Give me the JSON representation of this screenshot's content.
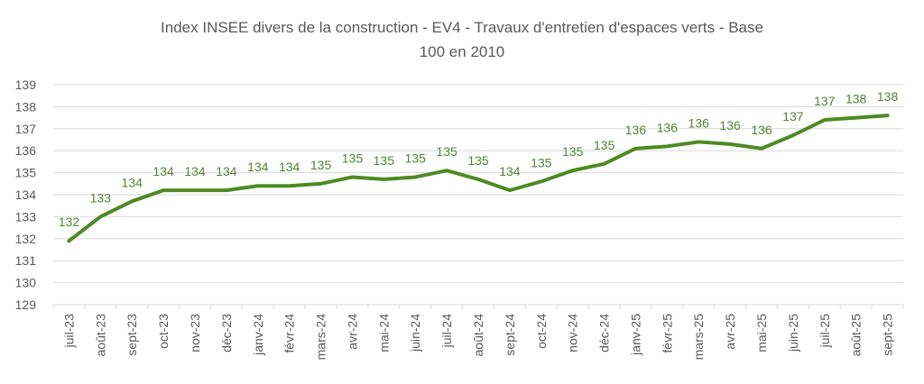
{
  "chart_data": {
    "type": "line",
    "title_lines": [
      "Index INSEE divers de la construction - EV4 - Travaux d'entretien d'espaces verts - Base",
      "100 en 2010"
    ],
    "xlabel": "",
    "ylabel": "",
    "ylim": [
      129,
      139
    ],
    "yticks": [
      "129",
      "130",
      "131",
      "132",
      "133",
      "134",
      "135",
      "136",
      "137",
      "138",
      "139"
    ],
    "grid": true,
    "legend": "none",
    "line_color": "#4e8a23",
    "label_color": "#548235",
    "categories": [
      "juil-23",
      "août-23",
      "sept-23",
      "oct-23",
      "nov-23",
      "déc-23",
      "janv-24",
      "févr-24",
      "mars-24",
      "avr-24",
      "mai-24",
      "juin-24",
      "juil-24",
      "août-24",
      "sept-24",
      "oct-24",
      "nov-24",
      "déc-24",
      "janv-25",
      "févr-25",
      "mars-25",
      "avr-25",
      "mai-25",
      "juin-25",
      "juil-25",
      "août-25",
      "sept-25"
    ],
    "values": [
      131.9,
      133.0,
      133.7,
      134.2,
      134.2,
      134.2,
      134.4,
      134.4,
      134.5,
      134.8,
      134.7,
      134.8,
      135.1,
      134.7,
      134.2,
      134.6,
      135.1,
      135.4,
      136.1,
      136.2,
      136.4,
      136.3,
      136.1,
      136.7,
      137.4,
      137.5,
      137.6
    ],
    "data_labels": [
      "132",
      "133",
      "134",
      "134",
      "134",
      "134",
      "134",
      "134",
      "135",
      "135",
      "135",
      "135",
      "135",
      "135",
      "134",
      "135",
      "135",
      "135",
      "136",
      "136",
      "136",
      "136",
      "136",
      "137",
      "137",
      "138",
      "138"
    ]
  }
}
